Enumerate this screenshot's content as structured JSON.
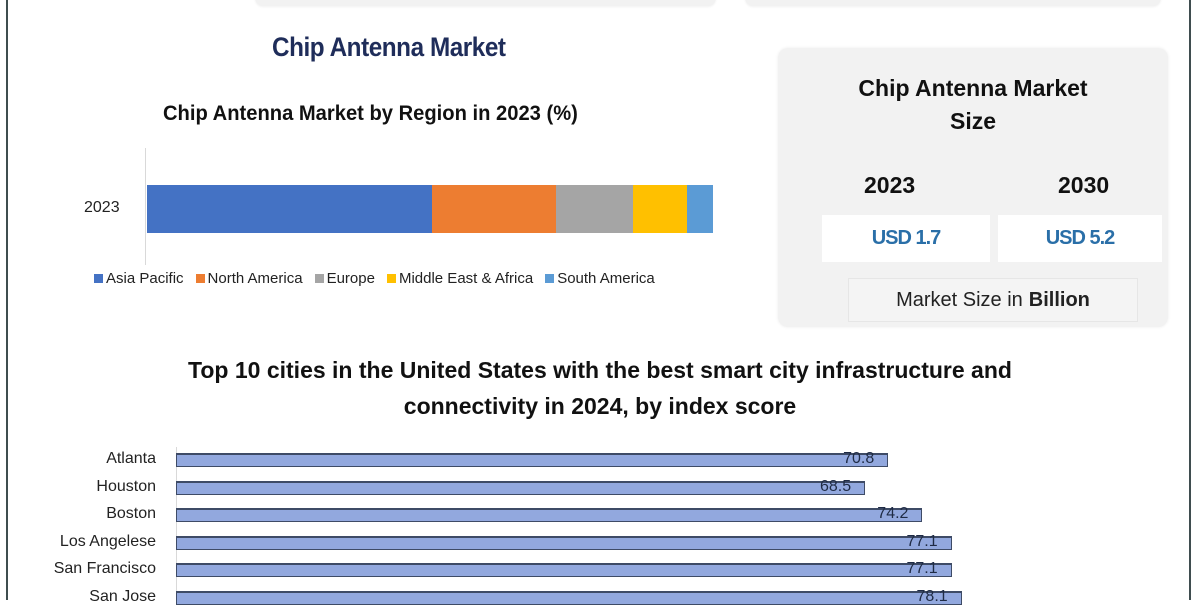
{
  "page": {
    "title": "Chip Antenna Market"
  },
  "market_size_card": {
    "title_line1": "Chip Antenna Market",
    "title_line2": "Size",
    "years": [
      {
        "year": "2023",
        "value": "USD 1.7"
      },
      {
        "year": "2030",
        "value": "USD 5.2"
      }
    ],
    "unit_prefix": "Market Size in",
    "unit_bold": "Billion"
  },
  "colors": {
    "title": "#1f2d5a",
    "value_text": "#2a6fa8",
    "bar_fill": "#92a8de"
  },
  "chart_data": [
    {
      "type": "bar",
      "orientation": "horizontal-stacked",
      "title": "Chip Antenna Market by Region in 2023 (%)",
      "categories": [
        "2023"
      ],
      "series": [
        {
          "name": "Asia Pacific",
          "values": [
            50.4
          ],
          "color": "#4472c4"
        },
        {
          "name": "North America",
          "values": [
            21.9
          ],
          "color": "#ed7d31"
        },
        {
          "name": "Europe",
          "values": [
            13.6
          ],
          "color": "#a5a5a5"
        },
        {
          "name": "Middle East & Africa",
          "values": [
            9.5
          ],
          "color": "#ffc000"
        },
        {
          "name": "South America",
          "values": [
            4.6
          ],
          "color": "#5b9bd5"
        }
      ],
      "xlabel": "",
      "ylabel": "",
      "xlim": [
        0,
        100
      ],
      "legend": "bottom",
      "grid": false
    },
    {
      "type": "bar",
      "orientation": "horizontal",
      "title": "Top 10 cities in the United States with the best smart city infrastructure and connectivity in 2024, by index score",
      "title_line1": "Top 10 cities in the United States with the best smart city infrastructure and",
      "title_line2": "connectivity in 2024, by index score",
      "categories": [
        "Atlanta",
        "Houston",
        "Boston",
        "Los Angelese",
        "San Francisco",
        "San Jose"
      ],
      "values": [
        70.8,
        68.5,
        74.2,
        77.1,
        77.1,
        78.1
      ],
      "labels": [
        "70.8",
        "68.5",
        "74.2",
        "77.1",
        "77.1",
        "78.1"
      ],
      "xlabel": "",
      "ylabel": "",
      "xlim": [
        0,
        100
      ],
      "grid": false,
      "data_labels": "inside-end"
    }
  ]
}
